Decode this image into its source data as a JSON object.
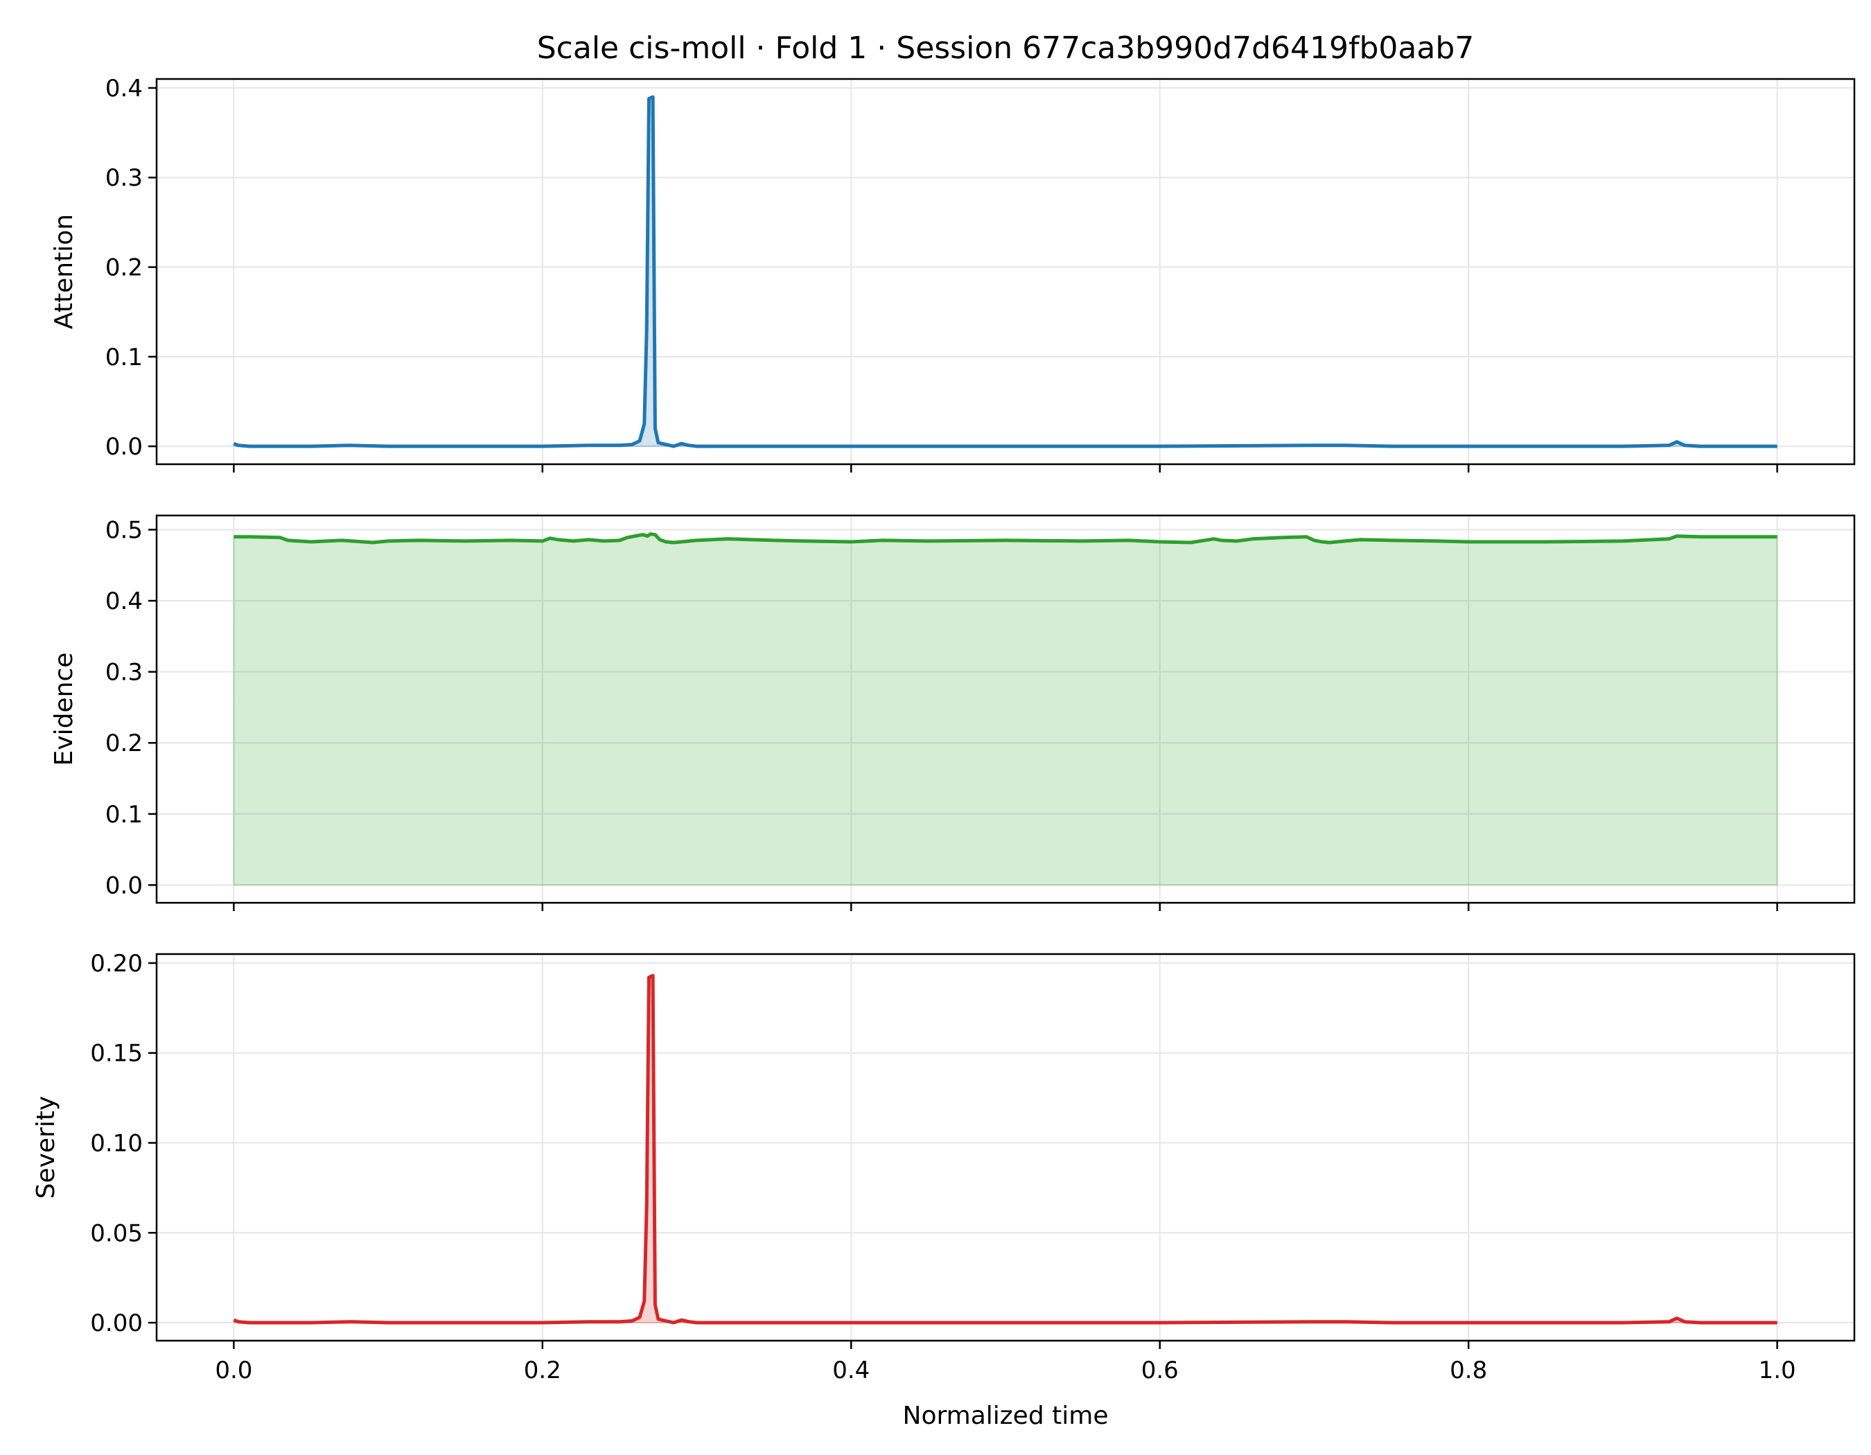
{
  "chart_data": {
    "type": "line",
    "title": "Scale cis-moll · Fold 1 · Session 677ca3b990d7d6419fb0aab7",
    "xlabel": "Normalized time",
    "xlim": [
      -0.05,
      1.05
    ],
    "x_ticks": [
      0.0,
      0.2,
      0.4,
      0.6,
      0.8,
      1.0
    ],
    "x_tick_labels": [
      "0.0",
      "0.2",
      "0.4",
      "0.6",
      "0.8",
      "1.0"
    ],
    "grid": true,
    "panels": [
      {
        "ylabel": "Attention",
        "ylim": [
          -0.02,
          0.41
        ],
        "y_ticks": [
          0.0,
          0.1,
          0.2,
          0.3,
          0.4
        ],
        "y_tick_labels": [
          "0.0",
          "0.1",
          "0.2",
          "0.3",
          "0.4"
        ],
        "color": "#1f77b4",
        "series": {
          "x": [
            0.0,
            0.003,
            0.01,
            0.05,
            0.075,
            0.1,
            0.15,
            0.2,
            0.23,
            0.25,
            0.258,
            0.263,
            0.266,
            0.2675,
            0.269,
            0.2715,
            0.273,
            0.275,
            0.28,
            0.285,
            0.29,
            0.295,
            0.3,
            0.35,
            0.4,
            0.5,
            0.6,
            0.7,
            0.72,
            0.75,
            0.8,
            0.9,
            0.93,
            0.935,
            0.94,
            0.95,
            1.0
          ],
          "y": [
            0.003,
            0.001,
            0.0,
            0.0,
            0.001,
            0.0,
            0.0,
            0.0,
            0.001,
            0.001,
            0.002,
            0.006,
            0.025,
            0.13,
            0.388,
            0.39,
            0.02,
            0.004,
            0.002,
            0.0,
            0.003,
            0.001,
            0.0,
            0.0,
            0.0,
            0.0,
            0.0,
            0.001,
            0.001,
            0.0,
            0.0,
            0.0,
            0.001,
            0.005,
            0.001,
            0.0,
            0.0
          ]
        }
      },
      {
        "ylabel": "Evidence",
        "ylim": [
          -0.025,
          0.52
        ],
        "y_ticks": [
          0.0,
          0.1,
          0.2,
          0.3,
          0.4,
          0.5
        ],
        "y_tick_labels": [
          "0.0",
          "0.1",
          "0.2",
          "0.3",
          "0.4",
          "0.5"
        ],
        "color": "#2ca02c",
        "series": {
          "x": [
            0.0,
            0.01,
            0.03,
            0.035,
            0.05,
            0.07,
            0.09,
            0.1,
            0.12,
            0.15,
            0.18,
            0.2,
            0.205,
            0.21,
            0.22,
            0.23,
            0.24,
            0.25,
            0.255,
            0.26,
            0.265,
            0.268,
            0.27,
            0.273,
            0.276,
            0.28,
            0.285,
            0.29,
            0.3,
            0.32,
            0.35,
            0.37,
            0.4,
            0.42,
            0.45,
            0.5,
            0.55,
            0.58,
            0.6,
            0.62,
            0.635,
            0.64,
            0.65,
            0.66,
            0.67,
            0.68,
            0.695,
            0.7,
            0.705,
            0.71,
            0.72,
            0.73,
            0.75,
            0.78,
            0.8,
            0.85,
            0.9,
            0.93,
            0.935,
            0.95,
            1.0
          ],
          "y": [
            0.49,
            0.49,
            0.489,
            0.485,
            0.483,
            0.485,
            0.482,
            0.484,
            0.485,
            0.484,
            0.485,
            0.484,
            0.488,
            0.486,
            0.484,
            0.486,
            0.484,
            0.485,
            0.489,
            0.491,
            0.493,
            0.491,
            0.494,
            0.493,
            0.486,
            0.483,
            0.482,
            0.483,
            0.485,
            0.487,
            0.485,
            0.484,
            0.483,
            0.485,
            0.484,
            0.485,
            0.484,
            0.485,
            0.483,
            0.482,
            0.487,
            0.485,
            0.484,
            0.487,
            0.488,
            0.489,
            0.49,
            0.485,
            0.483,
            0.482,
            0.484,
            0.486,
            0.485,
            0.484,
            0.483,
            0.483,
            0.484,
            0.487,
            0.491,
            0.49,
            0.49
          ]
        }
      },
      {
        "ylabel": "Severity",
        "ylim": [
          -0.01,
          0.205
        ],
        "y_ticks": [
          0.0,
          0.05,
          0.1,
          0.15,
          0.2
        ],
        "y_tick_labels": [
          "0.00",
          "0.05",
          "0.10",
          "0.15",
          "0.20"
        ],
        "color": "#d62728",
        "series": {
          "x": [
            0.0,
            0.003,
            0.01,
            0.05,
            0.075,
            0.1,
            0.15,
            0.2,
            0.23,
            0.25,
            0.258,
            0.263,
            0.266,
            0.2675,
            0.269,
            0.2715,
            0.273,
            0.275,
            0.28,
            0.285,
            0.29,
            0.295,
            0.3,
            0.35,
            0.4,
            0.5,
            0.6,
            0.7,
            0.72,
            0.75,
            0.8,
            0.9,
            0.93,
            0.935,
            0.94,
            0.95,
            1.0
          ],
          "y": [
            0.0015,
            0.0005,
            0.0,
            0.0,
            0.0005,
            0.0,
            0.0,
            0.0,
            0.0005,
            0.0005,
            0.001,
            0.003,
            0.012,
            0.065,
            0.192,
            0.193,
            0.01,
            0.002,
            0.001,
            0.0,
            0.0015,
            0.0005,
            0.0,
            0.0,
            0.0,
            0.0,
            0.0,
            0.0005,
            0.0005,
            0.0,
            0.0,
            0.0,
            0.0005,
            0.0025,
            0.0005,
            0.0,
            0.0
          ]
        }
      }
    ]
  }
}
